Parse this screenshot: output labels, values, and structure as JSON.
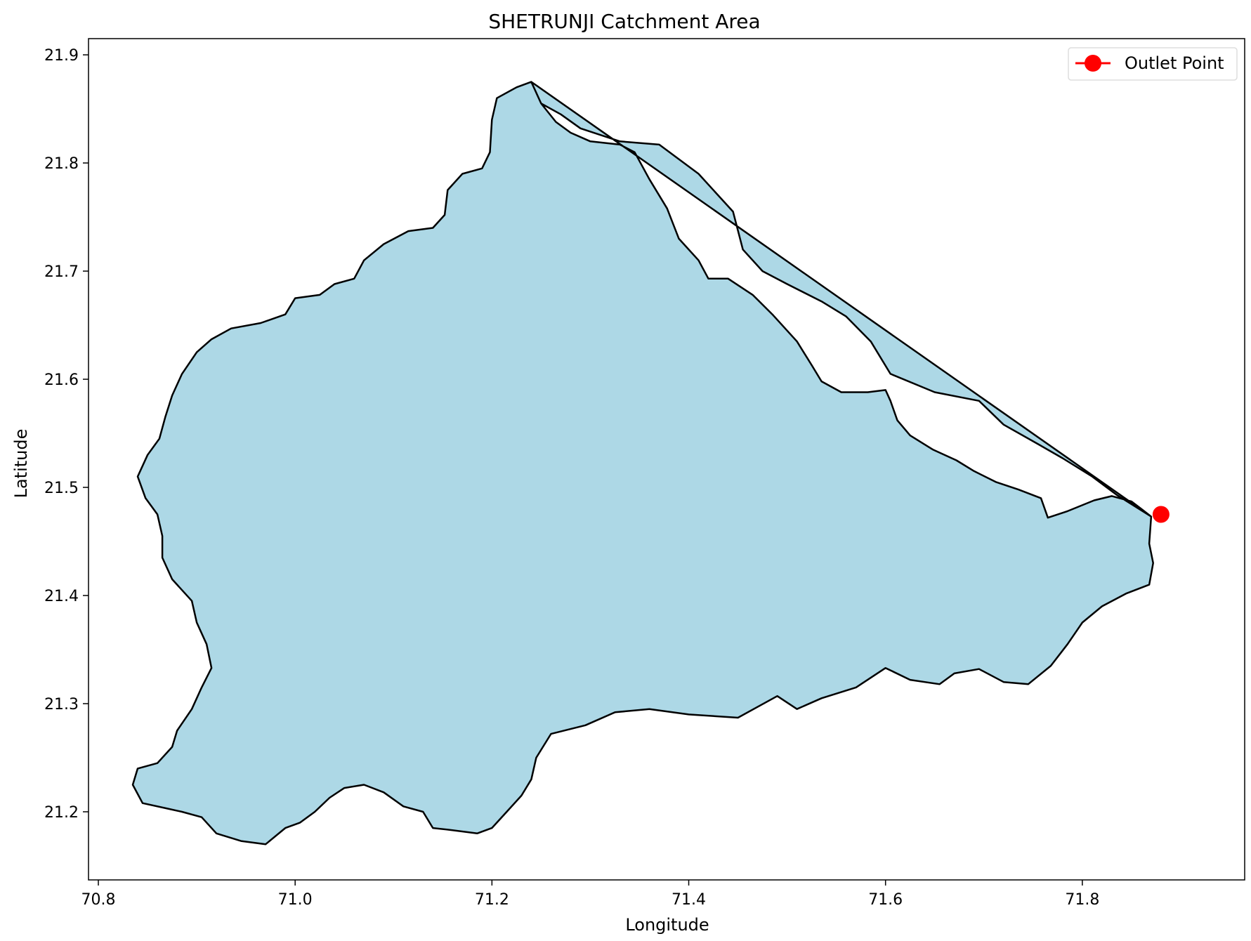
{
  "chart_data": {
    "type": "map",
    "title": "SHETRUNJI Catchment Area",
    "xlabel": "Longitude",
    "ylabel": "Latitude",
    "xlim": [
      70.79,
      71.965
    ],
    "ylim": [
      21.137,
      21.915
    ],
    "xticks": [
      70.8,
      71.0,
      71.2,
      71.4,
      71.6,
      71.8
    ],
    "xtick_labels": [
      "70.8",
      "71.0",
      "71.2",
      "71.4",
      "71.6",
      "71.8"
    ],
    "yticks": [
      21.2,
      21.3,
      21.4,
      21.5,
      21.6,
      21.7,
      21.8,
      21.9
    ],
    "ytick_labels": [
      "21.2",
      "21.3",
      "21.4",
      "21.5",
      "21.6",
      "21.7",
      "21.8",
      "21.9"
    ],
    "grid": false,
    "legend_position": "top-right",
    "catchment": {
      "fill_color": "#add8e6",
      "edge_color": "#000000",
      "boundary": [
        [
          71.24,
          21.875
        ],
        [
          71.25,
          21.855
        ],
        [
          71.27,
          21.845
        ],
        [
          71.29,
          21.832
        ],
        [
          71.33,
          21.82
        ],
        [
          71.37,
          21.817
        ],
        [
          71.41,
          21.79
        ],
        [
          71.445,
          21.755
        ],
        [
          71.455,
          21.72
        ],
        [
          71.475,
          21.7
        ],
        [
          71.5,
          21.688
        ],
        [
          71.535,
          21.672
        ],
        [
          71.56,
          21.658
        ],
        [
          71.585,
          21.635
        ],
        [
          71.605,
          21.605
        ],
        [
          71.65,
          21.588
        ],
        [
          71.695,
          21.58
        ],
        [
          71.72,
          21.558
        ],
        [
          71.755,
          21.54
        ],
        [
          71.78,
          21.527
        ],
        [
          71.81,
          21.51
        ],
        [
          71.835,
          21.493
        ],
        [
          71.87,
          21.473
        ],
        [
          71.86,
          21.48
        ],
        [
          71.85,
          21.487
        ],
        [
          71.83,
          21.492
        ],
        [
          71.812,
          21.488
        ],
        [
          71.785,
          21.478
        ],
        [
          71.765,
          21.472
        ],
        [
          71.758,
          21.49
        ],
        [
          71.735,
          21.498
        ],
        [
          71.712,
          21.505
        ],
        [
          71.69,
          21.515
        ],
        [
          71.672,
          21.525
        ],
        [
          71.648,
          21.535
        ],
        [
          71.625,
          21.548
        ],
        [
          71.612,
          21.562
        ],
        [
          71.605,
          21.58
        ],
        [
          71.6,
          21.59
        ],
        [
          71.582,
          21.588
        ],
        [
          71.555,
          21.588
        ],
        [
          71.535,
          21.598
        ],
        [
          71.525,
          21.613
        ],
        [
          71.51,
          21.635
        ],
        [
          71.485,
          21.66
        ],
        [
          71.465,
          21.678
        ],
        [
          71.44,
          21.693
        ],
        [
          71.42,
          21.693
        ],
        [
          71.41,
          21.71
        ],
        [
          71.39,
          21.73
        ],
        [
          71.378,
          21.758
        ],
        [
          71.36,
          21.785
        ],
        [
          71.345,
          21.81
        ],
        [
          71.33,
          21.817
        ],
        [
          71.3,
          21.82
        ],
        [
          71.28,
          21.828
        ],
        [
          71.265,
          21.838
        ],
        [
          71.25,
          21.855
        ],
        [
          71.24,
          21.875
        ],
        [
          71.225,
          21.87
        ],
        [
          71.205,
          21.86
        ],
        [
          71.2,
          21.84
        ],
        [
          71.198,
          21.81
        ],
        [
          71.19,
          21.795
        ],
        [
          71.17,
          21.79
        ],
        [
          71.155,
          21.775
        ],
        [
          71.152,
          21.752
        ],
        [
          71.14,
          21.74
        ],
        [
          71.115,
          21.737
        ],
        [
          71.09,
          21.725
        ],
        [
          71.07,
          21.71
        ],
        [
          71.06,
          21.693
        ],
        [
          71.04,
          21.688
        ],
        [
          71.025,
          21.678
        ],
        [
          71.0,
          21.675
        ],
        [
          70.99,
          21.66
        ],
        [
          70.965,
          21.652
        ],
        [
          70.935,
          21.647
        ],
        [
          70.915,
          21.637
        ],
        [
          70.9,
          21.625
        ],
        [
          70.885,
          21.605
        ],
        [
          70.875,
          21.585
        ],
        [
          70.868,
          21.565
        ],
        [
          70.862,
          21.545
        ],
        [
          70.85,
          21.53
        ],
        [
          70.84,
          21.51
        ],
        [
          70.848,
          21.49
        ],
        [
          70.86,
          21.475
        ],
        [
          70.865,
          21.455
        ],
        [
          70.865,
          21.435
        ],
        [
          70.875,
          21.415
        ],
        [
          70.895,
          21.395
        ],
        [
          70.9,
          21.375
        ],
        [
          70.91,
          21.355
        ],
        [
          70.915,
          21.333
        ],
        [
          70.905,
          21.315
        ],
        [
          70.895,
          21.295
        ],
        [
          70.88,
          21.275
        ],
        [
          70.875,
          21.26
        ],
        [
          70.86,
          21.245
        ],
        [
          70.84,
          21.24
        ],
        [
          70.835,
          21.225
        ],
        [
          70.845,
          21.208
        ],
        [
          70.87,
          21.203
        ],
        [
          70.885,
          21.2
        ],
        [
          70.905,
          21.195
        ],
        [
          70.92,
          21.18
        ],
        [
          70.945,
          21.173
        ],
        [
          70.97,
          21.17
        ],
        [
          70.99,
          21.185
        ],
        [
          71.005,
          21.19
        ],
        [
          71.02,
          21.2
        ],
        [
          71.035,
          21.213
        ],
        [
          71.05,
          21.222
        ],
        [
          71.07,
          21.225
        ],
        [
          71.09,
          21.218
        ],
        [
          71.11,
          21.205
        ],
        [
          71.13,
          21.2
        ],
        [
          71.14,
          21.185
        ],
        [
          71.16,
          21.183
        ],
        [
          71.185,
          21.18
        ],
        [
          71.2,
          21.185
        ],
        [
          71.215,
          21.2
        ],
        [
          71.23,
          21.215
        ],
        [
          71.24,
          21.23
        ],
        [
          71.245,
          21.25
        ],
        [
          71.26,
          21.272
        ],
        [
          71.295,
          21.28
        ],
        [
          71.325,
          21.292
        ],
        [
          71.36,
          21.295
        ],
        [
          71.4,
          21.29
        ],
        [
          71.45,
          21.287
        ],
        [
          71.49,
          21.307
        ],
        [
          71.51,
          21.295
        ],
        [
          71.535,
          21.305
        ],
        [
          71.57,
          21.315
        ],
        [
          71.6,
          21.333
        ],
        [
          71.625,
          21.322
        ],
        [
          71.655,
          21.318
        ],
        [
          71.67,
          21.328
        ],
        [
          71.695,
          21.332
        ],
        [
          71.72,
          21.32
        ],
        [
          71.745,
          21.318
        ],
        [
          71.768,
          21.335
        ],
        [
          71.785,
          21.355
        ],
        [
          71.8,
          21.375
        ],
        [
          71.82,
          21.39
        ],
        [
          71.845,
          21.402
        ],
        [
          71.868,
          21.41
        ],
        [
          71.872,
          21.43
        ],
        [
          71.868,
          21.448
        ],
        [
          71.87,
          21.473
        ]
      ]
    },
    "outlet": {
      "label": "Outlet Point",
      "x": 71.88,
      "y": 21.475,
      "color": "#ff0000"
    }
  }
}
